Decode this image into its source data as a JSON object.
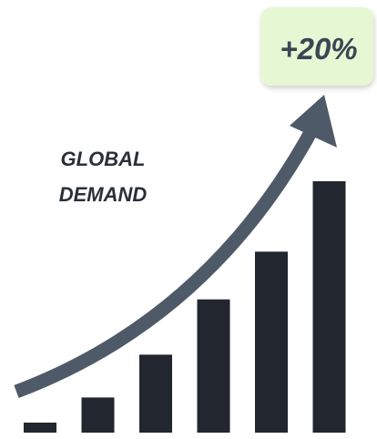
{
  "chart_data": {
    "type": "bar",
    "categories": [
      "",
      "",
      "",
      "",
      "",
      ""
    ],
    "values": [
      4,
      14,
      31,
      53,
      72,
      100
    ],
    "title": "",
    "xlabel": "",
    "ylabel": "",
    "ylim": [
      0,
      100
    ],
    "grid": false,
    "legend": "none",
    "annotations": {
      "trend_label_lines": [
        "GLOBAL",
        "DEMAND"
      ],
      "badge": "+20%"
    }
  },
  "colors": {
    "bar": "#22262e",
    "arrow": "#4f5a68",
    "badge_bg": "#e6f7d4",
    "badge_text": "#3a4654",
    "label_text": "#2a3039"
  }
}
